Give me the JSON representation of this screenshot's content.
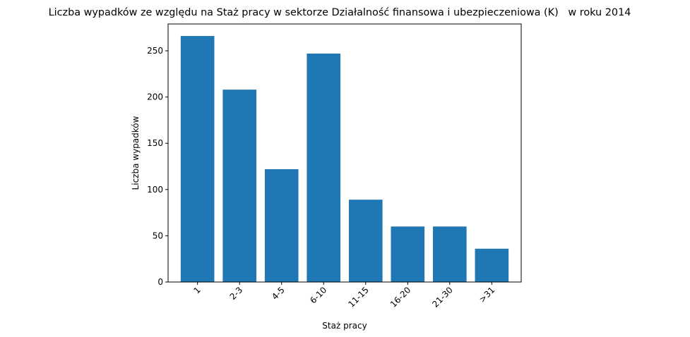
{
  "chart_data": {
    "type": "bar",
    "title": "Liczba wypadków ze względu na Staż pracy w sektorze Działalność finansowa i ubezpieczeniowa (K)   w roku 2014",
    "xlabel": "Staż pracy",
    "ylabel": "Liczba wypadków",
    "categories": [
      "1",
      "2-3",
      "4-5",
      "6-10",
      "11-15",
      "16-20",
      "21-30",
      ">31"
    ],
    "values": [
      266,
      208,
      122,
      247,
      89,
      60,
      60,
      36
    ],
    "ylim": [
      0,
      279
    ],
    "yticks": [
      0,
      50,
      100,
      150,
      200,
      250
    ],
    "bar_color": "#1f77b4",
    "grid": false
  }
}
